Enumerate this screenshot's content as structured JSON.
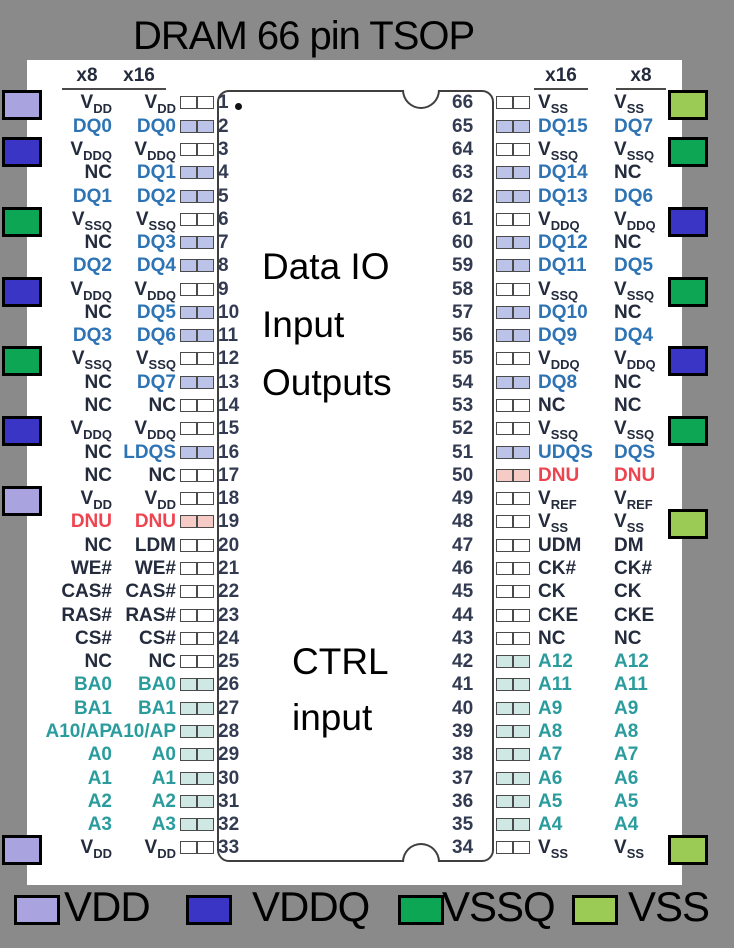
{
  "title": "DRAM 66 pin TSOP",
  "column_headers": {
    "left": [
      "x8",
      "x16"
    ],
    "right": [
      "x16",
      "x8"
    ]
  },
  "chip": {
    "region_labels": {
      "data_io": [
        "Data IO",
        "Input",
        "Outputs"
      ],
      "ctrl": [
        "CTRL",
        "input"
      ]
    }
  },
  "colors": {
    "background": "#8a8a8a",
    "vdd": "#a9a4e0",
    "vddq": "#3a35c4",
    "vssq": "#0ca654",
    "vss": "#9bcb55",
    "pin_dq": "#bcc3e8",
    "pin_addr": "#cfe8e4",
    "pin_dnu": "#f6cac5",
    "pin_none": "#ffffff",
    "text_dq": "#2e74b5",
    "text_addr": "#2b9c9d",
    "text_dnu": "#ee4450",
    "text_dark": "#232b3d",
    "number": "#333b52"
  },
  "left_rows": [
    {
      "pin": 1,
      "x8": "VDD",
      "x16": "VDD",
      "fill": "none"
    },
    {
      "pin": 2,
      "x8": "DQ0",
      "x16": "DQ0",
      "fill": "dq"
    },
    {
      "pin": 3,
      "x8": "VDDQ",
      "x16": "VDDQ",
      "fill": "none"
    },
    {
      "pin": 4,
      "x8": "NC",
      "x16": "DQ1",
      "fill": "dq"
    },
    {
      "pin": 5,
      "x8": "DQ1",
      "x16": "DQ2",
      "fill": "dq"
    },
    {
      "pin": 6,
      "x8": "VSSQ",
      "x16": "VSSQ",
      "fill": "none"
    },
    {
      "pin": 7,
      "x8": "NC",
      "x16": "DQ3",
      "fill": "dq"
    },
    {
      "pin": 8,
      "x8": "DQ2",
      "x16": "DQ4",
      "fill": "dq"
    },
    {
      "pin": 9,
      "x8": "VDDQ",
      "x16": "VDDQ",
      "fill": "none"
    },
    {
      "pin": 10,
      "x8": "NC",
      "x16": "DQ5",
      "fill": "dq"
    },
    {
      "pin": 11,
      "x8": "DQ3",
      "x16": "DQ6",
      "fill": "dq"
    },
    {
      "pin": 12,
      "x8": "VSSQ",
      "x16": "VSSQ",
      "fill": "none"
    },
    {
      "pin": 13,
      "x8": "NC",
      "x16": "DQ7",
      "fill": "dq"
    },
    {
      "pin": 14,
      "x8": "NC",
      "x16": "NC",
      "fill": "none"
    },
    {
      "pin": 15,
      "x8": "VDDQ",
      "x16": "VDDQ",
      "fill": "none"
    },
    {
      "pin": 16,
      "x8": "NC",
      "x16": "LDQS",
      "fill": "dq"
    },
    {
      "pin": 17,
      "x8": "NC",
      "x16": "NC",
      "fill": "none"
    },
    {
      "pin": 18,
      "x8": "VDD",
      "x16": "VDD",
      "fill": "none"
    },
    {
      "pin": 19,
      "x8": "DNU",
      "x16": "DNU",
      "fill": "dnu"
    },
    {
      "pin": 20,
      "x8": "NC",
      "x16": "LDM",
      "fill": "none"
    },
    {
      "pin": 21,
      "x8": "WE#",
      "x16": "WE#",
      "fill": "none"
    },
    {
      "pin": 22,
      "x8": "CAS#",
      "x16": "CAS#",
      "fill": "none"
    },
    {
      "pin": 23,
      "x8": "RAS#",
      "x16": "RAS#",
      "fill": "none"
    },
    {
      "pin": 24,
      "x8": "CS#",
      "x16": "CS#",
      "fill": "none"
    },
    {
      "pin": 25,
      "x8": "NC",
      "x16": "NC",
      "fill": "none"
    },
    {
      "pin": 26,
      "x8": "BA0",
      "x16": "BA0",
      "fill": "addr"
    },
    {
      "pin": 27,
      "x8": "BA1",
      "x16": "BA1",
      "fill": "addr"
    },
    {
      "pin": 28,
      "x8": "A10/AP",
      "x16": "A10/AP",
      "fill": "addr"
    },
    {
      "pin": 29,
      "x8": "A0",
      "x16": "A0",
      "fill": "addr"
    },
    {
      "pin": 30,
      "x8": "A1",
      "x16": "A1",
      "fill": "addr"
    },
    {
      "pin": 31,
      "x8": "A2",
      "x16": "A2",
      "fill": "addr"
    },
    {
      "pin": 32,
      "x8": "A3",
      "x16": "A3",
      "fill": "addr"
    },
    {
      "pin": 33,
      "x8": "VDD",
      "x16": "VDD",
      "fill": "none"
    }
  ],
  "right_rows": [
    {
      "pin": 66,
      "x16": "VSS",
      "x8": "VSS",
      "fill": "none"
    },
    {
      "pin": 65,
      "x16": "DQ15",
      "x8": "DQ7",
      "fill": "dq"
    },
    {
      "pin": 64,
      "x16": "VSSQ",
      "x8": "VSSQ",
      "fill": "none"
    },
    {
      "pin": 63,
      "x16": "DQ14",
      "x8": "NC",
      "fill": "dq"
    },
    {
      "pin": 62,
      "x16": "DQ13",
      "x8": "DQ6",
      "fill": "dq"
    },
    {
      "pin": 61,
      "x16": "VDDQ",
      "x8": "VDDQ",
      "fill": "none"
    },
    {
      "pin": 60,
      "x16": "DQ12",
      "x8": "NC",
      "fill": "dq"
    },
    {
      "pin": 59,
      "x16": "DQ11",
      "x8": "DQ5",
      "fill": "dq"
    },
    {
      "pin": 58,
      "x16": "VSSQ",
      "x8": "VSSQ",
      "fill": "none"
    },
    {
      "pin": 57,
      "x16": "DQ10",
      "x8": "NC",
      "fill": "dq"
    },
    {
      "pin": 56,
      "x16": "DQ9",
      "x8": "DQ4",
      "fill": "dq"
    },
    {
      "pin": 55,
      "x16": "VDDQ",
      "x8": "VDDQ",
      "fill": "none"
    },
    {
      "pin": 54,
      "x16": "DQ8",
      "x8": "NC",
      "fill": "dq"
    },
    {
      "pin": 53,
      "x16": "NC",
      "x8": "NC",
      "fill": "none"
    },
    {
      "pin": 52,
      "x16": "VSSQ",
      "x8": "VSSQ",
      "fill": "none"
    },
    {
      "pin": 51,
      "x16": "UDQS",
      "x8": "DQS",
      "fill": "dq"
    },
    {
      "pin": 50,
      "x16": "DNU",
      "x8": "DNU",
      "fill": "dnu"
    },
    {
      "pin": 49,
      "x16": "VREF",
      "x8": "VREF",
      "fill": "none"
    },
    {
      "pin": 48,
      "x16": "VSS",
      "x8": "VSS",
      "fill": "none"
    },
    {
      "pin": 47,
      "x16": "UDM",
      "x8": "DM",
      "fill": "none"
    },
    {
      "pin": 46,
      "x16": "CK#",
      "x8": "CK#",
      "fill": "none"
    },
    {
      "pin": 45,
      "x16": "CK",
      "x8": "CK",
      "fill": "none"
    },
    {
      "pin": 44,
      "x16": "CKE",
      "x8": "CKE",
      "fill": "none"
    },
    {
      "pin": 43,
      "x16": "NC",
      "x8": "NC",
      "fill": "none"
    },
    {
      "pin": 42,
      "x16": "A12",
      "x8": "A12",
      "fill": "addr"
    },
    {
      "pin": 41,
      "x16": "A11",
      "x8": "A11",
      "fill": "addr"
    },
    {
      "pin": 40,
      "x16": "A9",
      "x8": "A9",
      "fill": "addr"
    },
    {
      "pin": 39,
      "x16": "A8",
      "x8": "A8",
      "fill": "addr"
    },
    {
      "pin": 38,
      "x16": "A7",
      "x8": "A7",
      "fill": "addr"
    },
    {
      "pin": 37,
      "x16": "A6",
      "x8": "A6",
      "fill": "addr"
    },
    {
      "pin": 36,
      "x16": "A5",
      "x8": "A5",
      "fill": "addr"
    },
    {
      "pin": 35,
      "x16": "A4",
      "x8": "A4",
      "fill": "addr"
    },
    {
      "pin": 34,
      "x16": "VSS",
      "x8": "VSS",
      "fill": "none"
    }
  ],
  "left_edge_squares": [
    {
      "pin": 1,
      "type": "vdd"
    },
    {
      "pin": 3,
      "type": "vddq"
    },
    {
      "pin": 6,
      "type": "vssq"
    },
    {
      "pin": 9,
      "type": "vddq"
    },
    {
      "pin": 12,
      "type": "vssq"
    },
    {
      "pin": 15,
      "type": "vddq"
    },
    {
      "pin": 18,
      "type": "vdd"
    },
    {
      "pin": 33,
      "type": "vdd"
    }
  ],
  "right_edge_squares": [
    {
      "pin": 66,
      "type": "vss"
    },
    {
      "pin": 64,
      "type": "vssq"
    },
    {
      "pin": 61,
      "type": "vddq"
    },
    {
      "pin": 58,
      "type": "vssq"
    },
    {
      "pin": 55,
      "type": "vddq"
    },
    {
      "pin": 52,
      "type": "vssq"
    },
    {
      "pin": 48,
      "type": "vss"
    },
    {
      "pin": 34,
      "type": "vss"
    }
  ],
  "legend": [
    {
      "label": "VDD",
      "type": "vdd"
    },
    {
      "label": "VDDQ",
      "type": "vddq"
    },
    {
      "label": "VSSQ",
      "type": "vssq"
    },
    {
      "label": "VSS",
      "type": "vss"
    }
  ]
}
